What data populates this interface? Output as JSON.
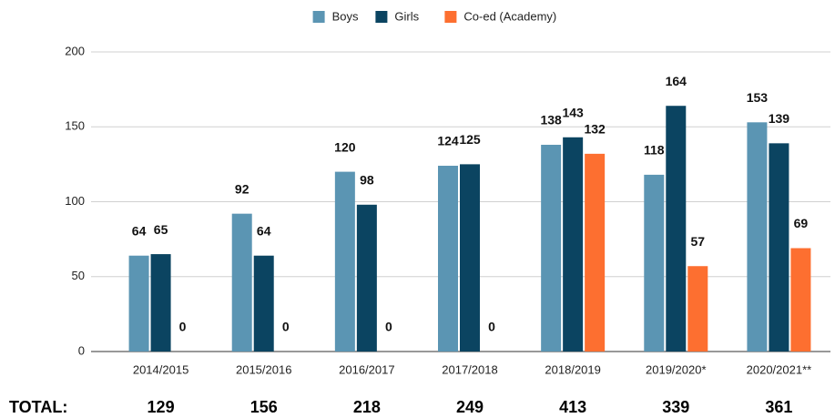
{
  "chart_data": {
    "type": "bar",
    "categories": [
      "2014/2015",
      "2015/2016",
      "2016/2017",
      "2017/2018",
      "2018/2019",
      "2019/2020*",
      "2020/2021**"
    ],
    "series": [
      {
        "name": "Boys",
        "color": "#5b95b3",
        "values": [
          64,
          92,
          120,
          124,
          138,
          118,
          153
        ]
      },
      {
        "name": "Girls",
        "color": "#0b4461",
        "values": [
          65,
          64,
          98,
          125,
          143,
          164,
          139
        ]
      },
      {
        "name": "Co-ed (Academy)",
        "color": "#fd6f30",
        "values": [
          0,
          0,
          0,
          0,
          132,
          57,
          69
        ]
      }
    ],
    "ylim": [
      0,
      200
    ],
    "yticks": [
      0,
      50,
      100,
      150,
      200
    ],
    "grid": true,
    "legend": "top",
    "totals": {
      "label": "TOTAL:",
      "values": [
        129,
        156,
        218,
        249,
        413,
        339,
        361
      ]
    }
  }
}
